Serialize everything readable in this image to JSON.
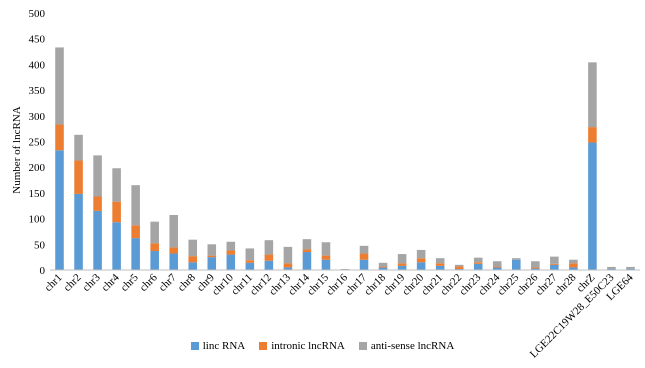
{
  "chart_data": {
    "type": "bar",
    "stacked": true,
    "ylabel": "Number of lncRNA",
    "xlabel": "",
    "ylim": [
      0,
      500
    ],
    "yticks": [
      0,
      50,
      100,
      150,
      200,
      250,
      300,
      350,
      400,
      450,
      500
    ],
    "grid": false,
    "legend_position": "bottom",
    "categories": [
      "chr1",
      "chr2",
      "chr3",
      "chr4",
      "chr5",
      "chr6",
      "chr7",
      "chr8",
      "chr9",
      "chr10",
      "chr11",
      "chr12",
      "chr13",
      "chr14",
      "chr15",
      "chr16",
      "chr17",
      "chr18",
      "chr19",
      "chr20",
      "chr21",
      "chr22",
      "chr23",
      "chr24",
      "chr25",
      "chr26",
      "chr27",
      "chr28",
      "chrZ",
      "LGE22C19W28_E50C23",
      "LGE64"
    ],
    "series": [
      {
        "name": "linc RNA",
        "color": "#5B9BD5",
        "values": [
          233,
          148,
          115,
          93,
          62,
          37,
          32,
          15,
          25,
          30,
          14,
          18,
          5,
          35,
          20,
          1,
          20,
          5,
          8,
          15,
          8,
          2,
          12,
          5,
          20,
          3,
          10,
          5,
          248,
          2,
          2
        ]
      },
      {
        "name": "intronic lncRNA",
        "color": "#ED7D31",
        "values": [
          50,
          65,
          28,
          40,
          25,
          15,
          12,
          12,
          3,
          8,
          5,
          12,
          8,
          5,
          8,
          0,
          12,
          2,
          5,
          8,
          5,
          5,
          3,
          2,
          0,
          2,
          2,
          8,
          30,
          0,
          0
        ]
      },
      {
        "name": "anti-sense lncRNA",
        "color": "#A5A5A5",
        "values": [
          150,
          50,
          80,
          65,
          78,
          42,
          63,
          32,
          22,
          17,
          23,
          28,
          32,
          20,
          26,
          1,
          15,
          7,
          18,
          16,
          10,
          3,
          9,
          10,
          3,
          12,
          14,
          7,
          126,
          4,
          4
        ]
      }
    ]
  }
}
